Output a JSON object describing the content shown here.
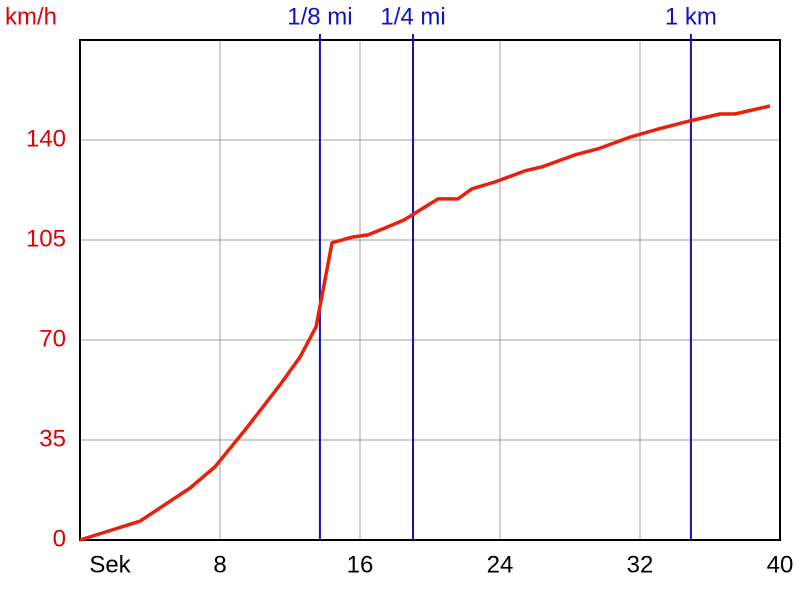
{
  "chart_data": {
    "type": "line",
    "y_axis_label": "km/h",
    "x": [
      0,
      3.43,
      6.29,
      7.71,
      9.43,
      11.43,
      12.57,
      13.49,
      14.4,
      15.54,
      16.46,
      17.43,
      18.51,
      19.43,
      20.46,
      21.6,
      22.4,
      23.71,
      25.43,
      26.4,
      28.29,
      29.6,
      31.43,
      33.14,
      34.86,
      36.57,
      37.43,
      39.43
    ],
    "series": [
      {
        "color": "#e8200c",
        "values": [
          0,
          6.6,
          18.2,
          25.6,
          38.5,
          54.3,
          64,
          74.6,
          104,
          106,
          106.8,
          109.2,
          112,
          115.5,
          119.4,
          119.4,
          122.9,
          125.3,
          129.2,
          130.6,
          134.8,
          136.9,
          141,
          144,
          146.7,
          149.1,
          149.1,
          151.9
        ]
      }
    ],
    "xlim": [
      0,
      40
    ],
    "xticks": [
      {
        "value": 0,
        "label": "Sek"
      },
      8,
      16,
      24,
      32,
      40
    ],
    "ylim": [
      0,
      175
    ],
    "yticks": [
      0,
      35,
      70,
      105,
      140
    ],
    "grid": true,
    "markers": [
      {
        "label": "1/8 mi",
        "x": 13.71,
        "color": "#1010c8"
      },
      {
        "label": "1/4 mi",
        "x": 19.03,
        "color": "#1010c8"
      },
      {
        "label": "1 km",
        "x": 34.91,
        "color": "#1010c8"
      }
    ]
  }
}
